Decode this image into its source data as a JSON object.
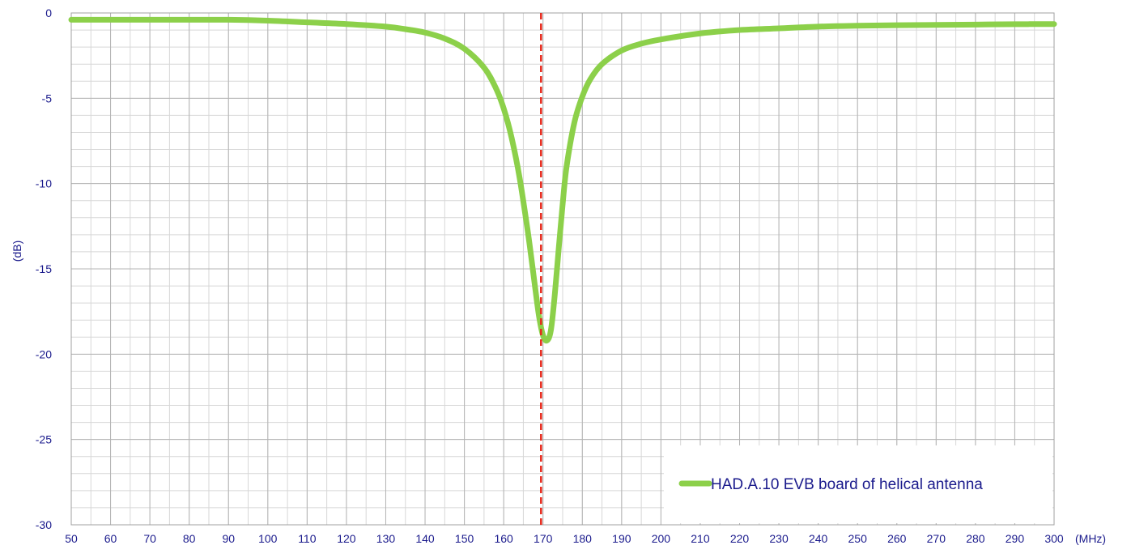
{
  "chart_data": {
    "type": "line",
    "title": "",
    "xlabel": "(MHz)",
    "ylabel": "(dB)",
    "xlim": [
      50,
      300
    ],
    "ylim": [
      -30,
      0
    ],
    "x_ticks": [
      50,
      60,
      70,
      80,
      90,
      100,
      110,
      120,
      130,
      140,
      150,
      160,
      170,
      180,
      190,
      200,
      210,
      220,
      230,
      240,
      250,
      260,
      270,
      280,
      290,
      300
    ],
    "y_ticks": [
      0,
      -5,
      -10,
      -15,
      -20,
      -25,
      -30
    ],
    "x_tick_labels": [
      "50",
      "60",
      "70",
      "80",
      "90",
      "100",
      "110",
      "120",
      "130",
      "140",
      "150",
      "160",
      "170",
      "180",
      "190",
      "200",
      "210",
      "220",
      "230",
      "240",
      "250",
      "260",
      "270",
      "280",
      "290",
      "300"
    ],
    "y_tick_labels": [
      "0",
      "-5",
      "-10",
      "-15",
      "-20",
      "-25",
      "-30"
    ],
    "x_minor_step": 5,
    "y_minor_step": 1,
    "grid": true,
    "legend_position": "bottom-right",
    "series": [
      {
        "name": "HAD.A.10 EVB board of helical antenna",
        "color": "#8cd04a",
        "x": [
          50,
          60,
          70,
          80,
          90,
          100,
          110,
          120,
          130,
          135,
          140,
          145,
          150,
          155,
          158,
          160,
          162,
          164,
          166,
          167,
          168,
          169,
          170,
          171,
          172,
          173,
          174,
          175,
          176,
          178,
          180,
          182,
          185,
          190,
          195,
          200,
          210,
          220,
          230,
          240,
          250,
          260,
          270,
          280,
          290,
          300
        ],
        "y": [
          -0.4,
          -0.4,
          -0.4,
          -0.4,
          -0.4,
          -0.45,
          -0.55,
          -0.65,
          -0.8,
          -0.95,
          -1.15,
          -1.5,
          -2.1,
          -3.2,
          -4.4,
          -5.6,
          -7.3,
          -9.6,
          -12.6,
          -14.3,
          -16.1,
          -17.8,
          -18.9,
          -19.2,
          -18.6,
          -16.5,
          -13.8,
          -11.2,
          -9.0,
          -6.4,
          -4.9,
          -3.9,
          -3.0,
          -2.2,
          -1.8,
          -1.55,
          -1.2,
          -1.0,
          -0.9,
          -0.8,
          -0.75,
          -0.72,
          -0.7,
          -0.68,
          -0.66,
          -0.65
        ]
      }
    ],
    "annotations": [
      {
        "type": "vertical-line",
        "x": 169.5,
        "style": "dashed",
        "color": "#e8291c"
      }
    ]
  }
}
